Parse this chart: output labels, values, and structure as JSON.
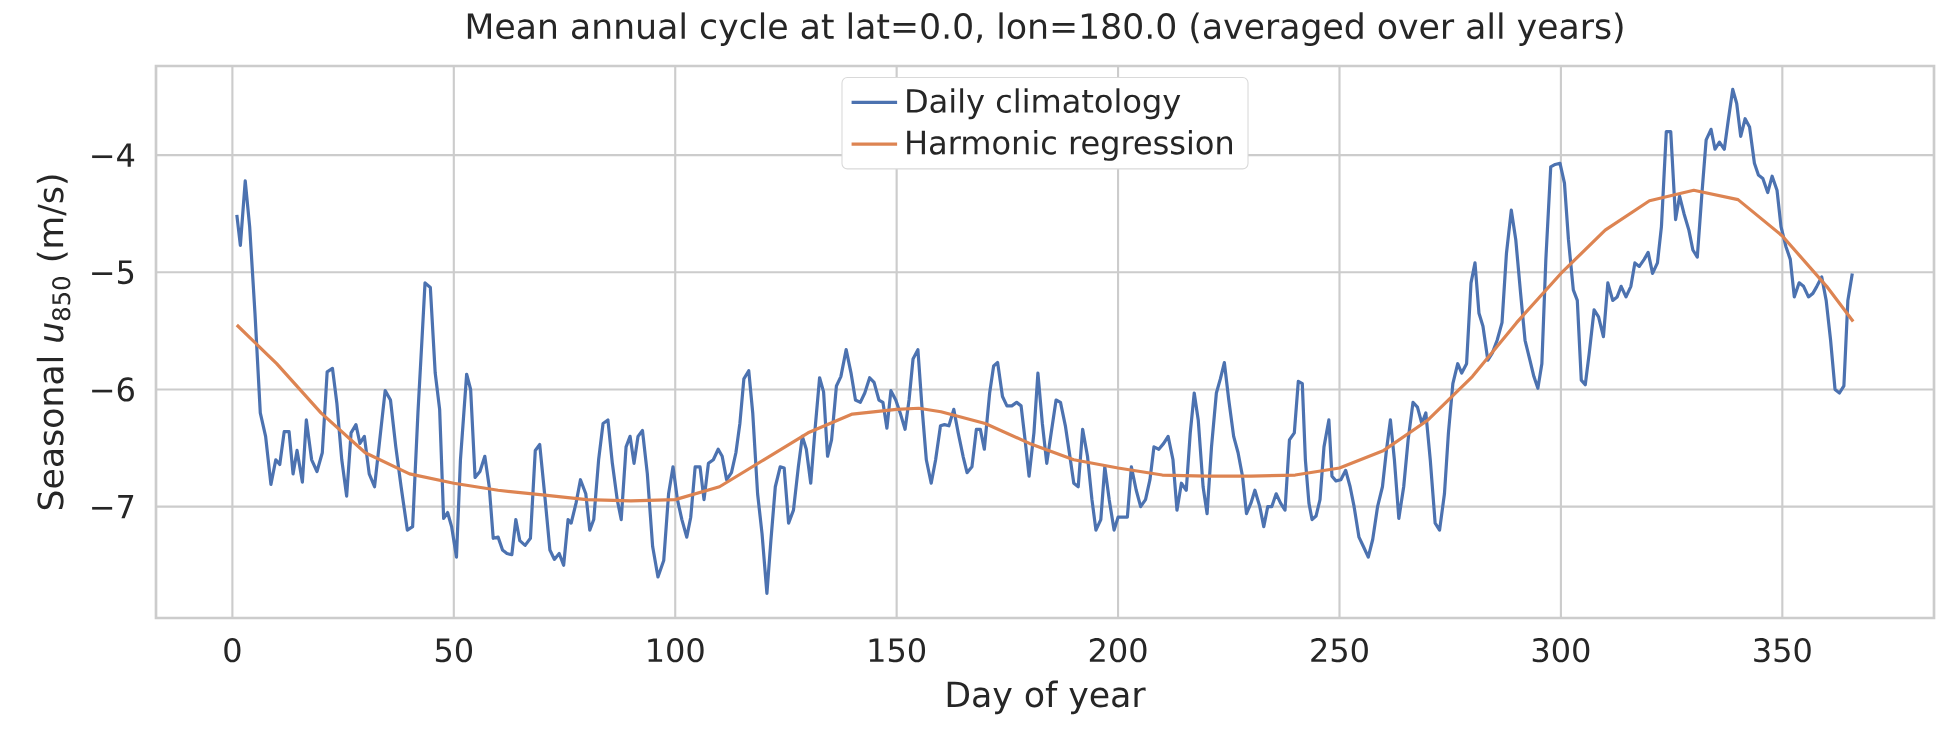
{
  "chart_data": {
    "type": "line",
    "title": "Mean annual cycle at lat=0.0, lon=180.0 (averaged over all years)",
    "xlabel": "Day of year",
    "ylabel": "Seasonal *u*$_{850}$ (m/s)",
    "xlim": [
      -17.25,
      384.25
    ],
    "ylim": [
      -7.95,
      -3.24
    ],
    "xticks": [
      0,
      50,
      100,
      150,
      200,
      250,
      300,
      350
    ],
    "yticks": [
      {
        "value": -7,
        "label": "−7"
      },
      {
        "value": -6,
        "label": "−6"
      },
      {
        "value": -5,
        "label": "−5"
      },
      {
        "value": -4,
        "label": "−4"
      }
    ],
    "grid": true,
    "legend": "top",
    "series": [
      {
        "name": "Daily climatology",
        "color": "#4c72b0",
        "x": [
          1,
          1.8,
          2.9,
          3.9,
          5.1,
          6.3,
          7.5,
          8.7,
          9.8,
          10.7,
          11.7,
          12.8,
          13.7,
          14.6,
          15.8,
          16.7,
          17.9,
          19.1,
          20.3,
          21.4,
          22.6,
          23.6,
          24.7,
          25.8,
          26.8,
          27.9,
          28.8,
          29.8,
          30.9,
          32.1,
          33.1,
          34.5,
          35.7,
          36.9,
          38.1,
          39.5,
          40.7,
          41.9,
          42.8,
          43.5,
          44.7,
          45.8,
          46.8,
          47.7,
          48.6,
          49.5,
          50.6,
          51.5,
          52.9,
          53.8,
          54.8,
          55.9,
          57,
          58,
          58.9,
          60,
          61,
          62,
          63.1,
          64,
          64.9,
          66.1,
          67.3,
          68.4,
          69.4,
          70.5,
          71.7,
          72.7,
          73.8,
          74.8,
          75.8,
          76.5,
          77.6,
          78.6,
          79.8,
          80.7,
          81.6,
          82.7,
          83.7,
          84.8,
          85.8,
          86.9,
          87.8,
          88.9,
          89.8,
          90.7,
          91.6,
          92.6,
          93.7,
          94.9,
          96.1,
          97.4,
          98.5,
          99.5,
          100.5,
          101.5,
          102.6,
          103.5,
          104.5,
          105.6,
          106.5,
          107.5,
          108.6,
          109.7,
          110.6,
          111.6,
          112.7,
          113.7,
          114.6,
          115.5,
          116.6,
          117.5,
          118.6,
          119.6,
          120.7,
          121.6,
          122.6,
          123.7,
          124.6,
          125.6,
          126.7,
          127.8,
          128.7,
          129.6,
          130.6,
          131.5,
          132.6,
          133.5,
          134.4,
          135.3,
          136.4,
          137.4,
          138.6,
          139.7,
          140.7,
          141.8,
          142.8,
          143.9,
          144.9,
          146,
          146.9,
          147.8,
          148.7,
          149.8,
          150.8,
          151.9,
          152.8,
          153.7,
          154.8,
          155.7,
          156.7,
          157.8,
          158.8,
          159.9,
          160.8,
          161.8,
          162.9,
          163.9,
          165,
          165.9,
          167,
          168,
          168.9,
          169.8,
          171,
          171.9,
          172.8,
          173.9,
          174.9,
          176,
          177.1,
          178.1,
          179,
          179.9,
          181,
          181.9,
          182.9,
          183.9,
          184.9,
          186,
          187,
          188.1,
          189,
          190,
          191,
          192,
          193.1,
          194.1,
          195,
          196.1,
          197,
          198,
          199.1,
          200,
          201.1,
          202.1,
          203,
          204.1,
          205.1,
          206.2,
          207.2,
          208.1,
          209.2,
          210.3,
          211.3,
          212.4,
          213.3,
          214.3,
          215.4,
          216.3,
          217.2,
          218.1,
          219.2,
          220.1,
          221.1,
          222.2,
          223.1,
          224,
          225,
          226.1,
          227.1,
          228.1,
          229,
          230,
          230.9,
          232,
          232.9,
          233.8,
          234.7,
          235.7,
          236.7,
          237.7,
          238.7,
          239.8,
          240.7,
          241.6,
          242.3,
          243.1,
          243.8,
          244.7,
          245.6,
          246.5,
          247.6,
          248.3,
          249.2,
          250.3,
          251.4,
          252.4,
          253.3,
          254.4,
          255.4,
          256.5,
          257.5,
          258.6,
          259.7,
          260.6,
          261.5,
          262.4,
          263.4,
          264.5,
          265.5,
          266.6,
          267.6,
          268.6,
          269.5,
          270.5,
          271.6,
          272.6,
          273.7,
          274.6,
          275.6,
          276.7,
          277.6,
          278.7,
          279.7,
          280.6,
          281.5,
          282.4,
          283.5,
          284.5,
          285.6,
          286.7,
          287.7,
          288.8,
          289.8,
          290.9,
          291.9,
          293,
          293.9,
          294.8,
          295.7,
          296.6,
          297.7,
          298.7,
          299.8,
          300.8,
          301.7,
          302.8,
          303.7,
          304.6,
          305.5,
          306.4,
          307.5,
          308.5,
          309.6,
          310.6,
          311.7,
          312.7,
          313.6,
          314.7,
          315.8,
          316.7,
          317.7,
          318.8,
          319.7,
          320.7,
          321.8,
          322.7,
          323.8,
          324.8,
          325.9,
          326.8,
          327.8,
          328.9,
          329.8,
          330.8,
          331.9,
          332.8,
          333.9,
          334.8,
          335.8,
          336.9,
          337.8,
          338.8,
          339.7,
          340.6,
          341.6,
          342.6,
          343.7,
          344.6,
          345.6,
          346.7,
          347.7,
          348.8,
          349.7,
          350.8,
          351.8,
          352.7,
          353.8,
          354.8,
          355.9,
          356.9,
          357.8,
          358.9,
          359.9,
          360.9,
          361.9,
          362.9,
          363.9,
          364.8,
          365.8
        ],
        "values": [
          -4.51,
          -4.77,
          -4.22,
          -4.61,
          -5.35,
          -6.2,
          -6.4,
          -6.81,
          -6.6,
          -6.64,
          -6.36,
          -6.36,
          -6.72,
          -6.52,
          -6.79,
          -6.26,
          -6.6,
          -6.7,
          -6.54,
          -5.85,
          -5.82,
          -6.12,
          -6.6,
          -6.91,
          -6.37,
          -6.3,
          -6.46,
          -6.4,
          -6.72,
          -6.83,
          -6.49,
          -6.01,
          -6.09,
          -6.49,
          -6.83,
          -7.2,
          -7.17,
          -6.2,
          -5.58,
          -5.09,
          -5.13,
          -5.86,
          -6.17,
          -7.1,
          -7.05,
          -7.17,
          -7.43,
          -6.6,
          -5.87,
          -6.0,
          -6.75,
          -6.7,
          -6.57,
          -6.83,
          -7.27,
          -7.26,
          -7.37,
          -7.4,
          -7.41,
          -7.11,
          -7.29,
          -7.33,
          -7.27,
          -6.52,
          -6.47,
          -6.89,
          -7.37,
          -7.45,
          -7.4,
          -7.5,
          -7.11,
          -7.14,
          -6.97,
          -6.77,
          -6.89,
          -7.2,
          -7.11,
          -6.6,
          -6.29,
          -6.26,
          -6.63,
          -6.94,
          -7.11,
          -6.49,
          -6.4,
          -6.63,
          -6.4,
          -6.35,
          -6.72,
          -7.34,
          -7.6,
          -7.46,
          -6.89,
          -6.66,
          -6.94,
          -7.11,
          -7.26,
          -7.09,
          -6.66,
          -6.66,
          -6.94,
          -6.63,
          -6.6,
          -6.51,
          -6.57,
          -6.77,
          -6.71,
          -6.54,
          -6.29,
          -5.91,
          -5.84,
          -6.2,
          -6.89,
          -7.23,
          -7.74,
          -7.29,
          -6.83,
          -6.66,
          -6.67,
          -7.14,
          -7.03,
          -6.66,
          -6.4,
          -6.51,
          -6.8,
          -6.37,
          -5.9,
          -6.02,
          -6.57,
          -6.43,
          -5.97,
          -5.89,
          -5.66,
          -5.86,
          -6.09,
          -6.11,
          -6.03,
          -5.9,
          -5.94,
          -6.09,
          -6.11,
          -6.33,
          -6.01,
          -6.09,
          -6.2,
          -6.34,
          -6.09,
          -5.74,
          -5.66,
          -6.14,
          -6.6,
          -6.8,
          -6.6,
          -6.31,
          -6.3,
          -6.31,
          -6.17,
          -6.37,
          -6.57,
          -6.71,
          -6.66,
          -6.34,
          -6.34,
          -6.51,
          -6.03,
          -5.8,
          -5.77,
          -6.06,
          -6.14,
          -6.14,
          -6.11,
          -6.14,
          -6.43,
          -6.74,
          -6.37,
          -5.86,
          -6.29,
          -6.63,
          -6.37,
          -6.09,
          -6.11,
          -6.31,
          -6.54,
          -6.8,
          -6.83,
          -6.34,
          -6.57,
          -6.94,
          -7.2,
          -7.11,
          -6.66,
          -6.94,
          -7.2,
          -7.09,
          -7.09,
          -7.09,
          -6.66,
          -6.86,
          -7.0,
          -6.94,
          -6.77,
          -6.49,
          -6.51,
          -6.46,
          -6.4,
          -6.6,
          -7.03,
          -6.8,
          -6.86,
          -6.37,
          -6.03,
          -6.26,
          -6.83,
          -7.06,
          -6.49,
          -6.03,
          -5.91,
          -5.77,
          -6.09,
          -6.4,
          -6.54,
          -6.74,
          -7.06,
          -6.97,
          -6.86,
          -7.0,
          -7.17,
          -7.0,
          -7.0,
          -6.89,
          -6.97,
          -7.03,
          -6.43,
          -6.37,
          -5.93,
          -5.95,
          -6.6,
          -6.97,
          -7.11,
          -7.08,
          -6.94,
          -6.49,
          -6.26,
          -6.74,
          -6.78,
          -6.77,
          -6.69,
          -6.83,
          -7.0,
          -7.26,
          -7.34,
          -7.43,
          -7.28,
          -7.0,
          -6.83,
          -6.52,
          -6.26,
          -6.6,
          -7.1,
          -6.83,
          -6.43,
          -6.11,
          -6.15,
          -6.29,
          -6.2,
          -6.6,
          -7.14,
          -7.2,
          -6.89,
          -6.37,
          -5.95,
          -5.78,
          -5.86,
          -5.78,
          -5.09,
          -4.92,
          -5.35,
          -5.46,
          -5.75,
          -5.69,
          -5.58,
          -5.43,
          -4.84,
          -4.47,
          -4.72,
          -5.18,
          -5.58,
          -5.75,
          -5.89,
          -5.99,
          -5.78,
          -4.89,
          -4.1,
          -4.08,
          -4.07,
          -4.24,
          -4.72,
          -5.15,
          -5.24,
          -5.92,
          -5.96,
          -5.69,
          -5.32,
          -5.38,
          -5.55,
          -5.09,
          -5.24,
          -5.21,
          -5.12,
          -5.21,
          -5.12,
          -4.92,
          -4.95,
          -4.89,
          -4.83,
          -5.01,
          -4.92,
          -4.61,
          -3.8,
          -3.8,
          -4.55,
          -4.35,
          -4.5,
          -4.64,
          -4.81,
          -4.87,
          -4.3,
          -3.87,
          -3.78,
          -3.95,
          -3.89,
          -3.95,
          -3.7,
          -3.44,
          -3.56,
          -3.84,
          -3.69,
          -3.76,
          -4.07,
          -4.17,
          -4.2,
          -4.32,
          -4.18,
          -4.3,
          -4.61,
          -4.78,
          -4.89,
          -5.21,
          -5.09,
          -5.12,
          -5.21,
          -5.18,
          -5.12,
          -5.04,
          -5.24,
          -5.58,
          -6.0,
          -6.03,
          -5.97,
          -5.24,
          -5.01
        ]
      },
      {
        "name": "Harmonic regression",
        "color": "#dd8452",
        "x": [
          1,
          10,
          20,
          30,
          40,
          50,
          60,
          70,
          80,
          90,
          100,
          110,
          120,
          130,
          140,
          150,
          155,
          160,
          170,
          180,
          190,
          200,
          210,
          220,
          230,
          240,
          250,
          260,
          270,
          280,
          290,
          300,
          310,
          320,
          330,
          340,
          350,
          360,
          366
        ],
        "values": [
          -5.45,
          -5.78,
          -6.2,
          -6.54,
          -6.72,
          -6.8,
          -6.86,
          -6.9,
          -6.94,
          -6.95,
          -6.94,
          -6.83,
          -6.6,
          -6.37,
          -6.21,
          -6.17,
          -6.16,
          -6.19,
          -6.29,
          -6.46,
          -6.6,
          -6.67,
          -6.73,
          -6.74,
          -6.74,
          -6.73,
          -6.67,
          -6.52,
          -6.26,
          -5.89,
          -5.43,
          -5.01,
          -4.64,
          -4.39,
          -4.3,
          -4.38,
          -4.69,
          -5.12,
          -5.42
        ]
      }
    ]
  }
}
